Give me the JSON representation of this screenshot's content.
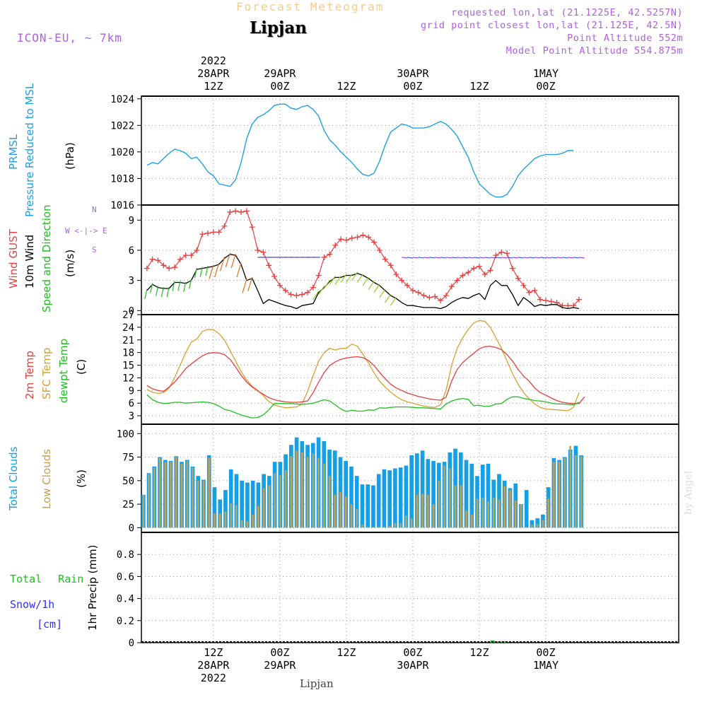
{
  "header": {
    "title_top": "Forecast Meteogram",
    "location": "Lipjan",
    "model": "ICON-EU, ~ 7km",
    "requested": "requested lon,lat (21.1225E, 42.5257N)",
    "grid_point": "grid point closest lon,lat (21.125E, 42.5N)",
    "point_altitude": "Point Altitude 552m",
    "model_altitude": "Model Point Altitude 554.875m",
    "watermark": "by Angel",
    "footer_location": "Lipjan"
  },
  "time_axis": {
    "hours_total": 96,
    "top_labels": [
      {
        "hour": 12,
        "lines": [
          "2022",
          "28APR",
          "12Z"
        ]
      },
      {
        "hour": 24,
        "lines": [
          "29APR",
          "00Z"
        ]
      },
      {
        "hour": 36,
        "lines": [
          "12Z"
        ]
      },
      {
        "hour": 48,
        "lines": [
          "30APR",
          "00Z"
        ]
      },
      {
        "hour": 60,
        "lines": [
          "12Z"
        ]
      },
      {
        "hour": 72,
        "lines": [
          "1MAY",
          "00Z"
        ]
      }
    ],
    "bottom_labels": [
      {
        "hour": 12,
        "lines": [
          "12Z",
          "28APR",
          "2022"
        ]
      },
      {
        "hour": 24,
        "lines": [
          "00Z",
          "29APR"
        ]
      },
      {
        "hour": 36,
        "lines": [
          "12Z"
        ]
      },
      {
        "hour": 48,
        "lines": [
          "00Z",
          "30APR"
        ]
      },
      {
        "hour": 60,
        "lines": [
          "12Z"
        ]
      },
      {
        "hour": 72,
        "lines": [
          "00Z",
          "1MAY"
        ]
      }
    ],
    "grid_hours": [
      12,
      24,
      36,
      48,
      60,
      72
    ]
  },
  "labels": {
    "pressure": [
      "PRMSL",
      "Pressure Reduced to MSL",
      "(hPa)"
    ],
    "wind": [
      "Wind GUST",
      "10m Wind",
      "Speed and Direction",
      "(m/s)"
    ],
    "compass": [
      "N",
      "W <-|-> E",
      "S"
    ],
    "temp": [
      "2m Temp",
      "SFC Temp",
      "dewpt Temp",
      "(C)"
    ],
    "clouds": [
      "Total Clouds",
      "Low Clouds",
      "(%)"
    ],
    "precip": [
      "Total Rain",
      "Snow/1h",
      "[cm]",
      "1hr Precip (mm)"
    ]
  },
  "colors": {
    "pressure": "#1ea0e6",
    "gust": "#e64040",
    "wind": "#000000",
    "temp2m": "#e64040",
    "sfc": "#d8a030",
    "dewpt": "#20c020",
    "total_clouds": "#14a0e6",
    "low_clouds": "#c8a050",
    "rain": "#20c020",
    "snow": "#3030ff",
    "purple": "#b060e0"
  },
  "chart_data": [
    {
      "type": "line",
      "name": "pressure",
      "x_step_hours": 1,
      "ylim": [
        1016,
        1024.2
      ],
      "yticks": [
        1016,
        1018,
        1020,
        1022,
        1024
      ],
      "series": [
        {
          "name": "PRMSL",
          "values": [
            1019,
            1019.2,
            1019.1,
            1019.5,
            1019.9,
            1020.2,
            1020.1,
            1019.9,
            1019.5,
            1019.6,
            1019.1,
            1018.5,
            1018.2,
            1017.6,
            1017.5,
            1017.4,
            1017.9,
            1019.2,
            1021,
            1022.1,
            1022.6,
            1022.8,
            1023.1,
            1023.5,
            1023.6,
            1023.6,
            1023.3,
            1023.2,
            1023.4,
            1023.5,
            1023.2,
            1022.7,
            1021.6,
            1020.9,
            1020.5,
            1020,
            1019.6,
            1019.2,
            1018.7,
            1018.3,
            1018.2,
            1018.4,
            1019.3,
            1020.5,
            1021.5,
            1021.8,
            1022.1,
            1022,
            1021.8,
            1021.8,
            1021.8,
            1021.9,
            1022.1,
            1022.3,
            1022.1,
            1021.7,
            1021.2,
            1020.4,
            1019.6,
            1018.5,
            1017.6,
            1017.2,
            1016.8,
            1016.6,
            1016.6,
            1016.8,
            1017.4,
            1018.2,
            1018.7,
            1019.1,
            1019.5,
            1019.7,
            1019.8,
            1019.8,
            1019.8,
            1019.9,
            1020.1,
            1020.1
          ]
        }
      ]
    },
    {
      "type": "line",
      "name": "wind",
      "ylim": [
        -0.4,
        10.5
      ],
      "yticks": [
        0,
        3,
        6,
        9
      ],
      "series": [
        {
          "name": "Wind GUST",
          "values": [
            4.2,
            5.1,
            5.0,
            4.5,
            4.2,
            4.3,
            5.1,
            5.5,
            5.5,
            6.0,
            7.6,
            7.7,
            7.8,
            7.8,
            8.4,
            9.8,
            9.9,
            9.8,
            9.9,
            8.3,
            6.0,
            5.8,
            4.5,
            3.4,
            2.5,
            2.0,
            1.6,
            1.5,
            1.6,
            1.8,
            2.3,
            3.5,
            5.3,
            5.6,
            6.5,
            7.1,
            7.0,
            7.2,
            7.3,
            7.5,
            7.3,
            6.8,
            6.0,
            5.1,
            4.5,
            3.6,
            3.0,
            2.5,
            2.0,
            1.8,
            1.5,
            1.3,
            1.4,
            1.0,
            1.5,
            2.4,
            3.0,
            3.5,
            3.8,
            4.2,
            4.4,
            3.6,
            4.0,
            5.5,
            5.8,
            5.7,
            4.2,
            3.2,
            2.5,
            1.8,
            2.0,
            1.1,
            1.0,
            0.9,
            0.8,
            0.5,
            0.5,
            0.5,
            1.1
          ]
        },
        {
          "name": "10m Wind",
          "values": [
            2.0,
            2.6,
            2.3,
            2.2,
            2.2,
            2.8,
            2.8,
            2.7,
            3.0,
            4.1,
            4.2,
            4.3,
            4.4,
            4.6,
            5.2,
            5.6,
            5.5,
            4.6,
            3.0,
            3.2,
            2.0,
            0.7,
            1.1,
            0.9,
            0.7,
            0.5,
            0.4,
            0.2,
            0.5,
            0.6,
            0.7,
            1.8,
            2.3,
            2.9,
            3.3,
            3.3,
            3.5,
            3.5,
            3.7,
            3.5,
            3.2,
            2.8,
            2.5,
            2.0,
            1.5,
            1.2,
            0.8,
            0.5,
            0.5,
            0.4,
            0.3,
            0.3,
            0.3,
            0.2,
            0.4,
            0.8,
            1.1,
            1.3,
            1.2,
            1.5,
            1.7,
            1.1,
            2.5,
            3.0,
            2.5,
            2.5,
            1.6,
            0.5,
            1.3,
            0.9,
            0.4,
            0.6,
            0.5,
            0.6,
            0.6,
            0.3,
            0.2,
            0.3,
            0.2
          ]
        }
      ]
    },
    {
      "type": "line",
      "name": "temperature",
      "ylim": [
        1,
        27
      ],
      "yticks": [
        3,
        6,
        9,
        12,
        15,
        18,
        21,
        24,
        27
      ],
      "series": [
        {
          "name": "2m Temp",
          "values": [
            10.2,
            9.4,
            9.0,
            8.8,
            9.8,
            11,
            12.5,
            14.2,
            15.3,
            16.3,
            17.2,
            17.8,
            18,
            17.9,
            17.5,
            16.4,
            14.6,
            12.6,
            11,
            9.8,
            8.9,
            8.1,
            7.3,
            6.8,
            6.5,
            6.3,
            6.2,
            6.2,
            6.3,
            6.5,
            8.5,
            11,
            13.3,
            14.9,
            15.8,
            16.4,
            16.7,
            16.9,
            17,
            16.8,
            16.1,
            14.9,
            13.3,
            11.8,
            10.5,
            9.6,
            9.0,
            8.4,
            8.0,
            7.6,
            7.3,
            7.0,
            6.8,
            6.7,
            7.4,
            11.2,
            14.0,
            15.6,
            16.8,
            17.8,
            18.9,
            19.4,
            19.5,
            19.2,
            18.7,
            17.5,
            16.0,
            14.0,
            12.4,
            11.2,
            9.6,
            8.5,
            7.9,
            7.2,
            6.6,
            6.2,
            6.0,
            5.9,
            5.9,
            7.5
          ]
        },
        {
          "name": "SFC Temp",
          "values": [
            9.2,
            8.6,
            8.3,
            8.5,
            9.6,
            12.0,
            15.0,
            18.0,
            20.5,
            21.2,
            23.0,
            23.5,
            23.4,
            22.5,
            21.0,
            18.5,
            16.0,
            13.5,
            11.5,
            10.0,
            9.0,
            7.8,
            6.4,
            5.6,
            5.2,
            4.9,
            5.0,
            5.1,
            5.8,
            8.8,
            12.5,
            16.0,
            18.0,
            19.0,
            18.6,
            19.0,
            19.0,
            20.0,
            19.5,
            17.6,
            15.5,
            13.2,
            11.2,
            9.8,
            8.6,
            7.6,
            6.8,
            6.3,
            6.0,
            5.6,
            5.3,
            5.1,
            5.0,
            5.6,
            9.0,
            15.0,
            19.0,
            21.5,
            23.5,
            25.0,
            25.6,
            25.4,
            24.0,
            21.5,
            19.0,
            16.0,
            13.0,
            10.5,
            8.5,
            7.0,
            5.8,
            5.0,
            4.6,
            4.5,
            4.4,
            4.3,
            4.2,
            5.0,
            8.5
          ]
        },
        {
          "name": "dewpt Temp",
          "values": [
            8.0,
            6.8,
            6.2,
            5.9,
            6.0,
            6.2,
            6.2,
            6.0,
            6.1,
            6.2,
            6.3,
            6.2,
            5.9,
            5.3,
            4.5,
            4.2,
            3.7,
            3.2,
            2.8,
            2.5,
            2.6,
            3.2,
            4.4,
            5.9,
            5.9,
            5.9,
            5.9,
            5.8,
            5.7,
            5.8,
            6.0,
            6.4,
            6.8,
            6.5,
            5.6,
            4.6,
            4.0,
            4.3,
            4.1,
            4.1,
            4.4,
            4.3,
            4.9,
            4.8,
            5.0,
            5.1,
            5.1,
            5.1,
            5.0,
            4.9,
            4.9,
            4.8,
            4.7,
            4.6,
            5.8,
            6.5,
            6.9,
            7.1,
            6.9,
            5.4,
            5.5,
            5.2,
            5.3,
            5.8,
            5.9,
            6.9,
            7.5,
            7.5,
            7.1,
            6.9,
            6.6,
            6.5,
            6.3,
            6.0,
            5.8,
            5.8,
            5.7,
            5.6,
            6.2
          ]
        }
      ]
    },
    {
      "type": "bar",
      "name": "clouds",
      "ylim": [
        -5,
        110
      ],
      "yticks": [
        0,
        25,
        50,
        75,
        100
      ],
      "series": [
        {
          "name": "Total Clouds",
          "values": [
            35,
            58,
            65,
            75,
            72,
            71,
            76,
            70,
            72,
            65,
            55,
            51,
            77,
            43,
            30,
            40,
            62,
            57,
            50,
            48,
            50,
            48,
            57,
            55,
            70,
            70,
            78,
            88,
            96,
            92,
            88,
            90,
            96,
            92,
            83,
            82,
            75,
            71,
            65,
            55,
            46,
            46,
            45,
            57,
            62,
            61,
            63,
            64,
            66,
            77,
            79,
            82,
            73,
            71,
            69,
            70,
            80,
            84,
            80,
            72,
            68,
            55,
            67,
            68,
            51,
            57,
            50,
            42,
            47,
            25,
            40,
            8,
            10,
            14,
            43,
            74,
            72,
            75,
            83,
            87,
            77
          ]
        },
        {
          "name": "Low Clouds",
          "values": [
            35,
            57,
            64,
            74,
            70,
            70,
            75,
            68,
            71,
            64,
            50,
            50,
            74,
            15,
            15,
            17,
            26,
            24,
            8,
            7,
            14,
            23,
            42,
            45,
            58,
            56,
            61,
            76,
            82,
            80,
            75,
            79,
            74,
            68,
            55,
            35,
            38,
            33,
            25,
            20,
            3,
            1,
            1,
            1,
            1,
            2,
            5,
            5,
            13,
            10,
            35,
            36,
            35,
            25,
            50,
            66,
            63,
            45,
            45,
            18,
            14,
            31,
            32,
            28,
            32,
            30,
            44,
            40,
            29,
            25,
            1,
            3,
            4,
            8,
            31,
            70,
            70,
            74,
            87,
            77,
            76
          ]
        }
      ]
    },
    {
      "type": "bar",
      "name": "precipitation",
      "ylim": [
        0,
        1.0
      ],
      "yticks": [
        0,
        0.2,
        0.4,
        0.6,
        0.8
      ],
      "series": [
        {
          "name": "Total Rain",
          "points": [
            {
              "hour": 62,
              "value": 0.02
            },
            {
              "hour": 63,
              "value": 0.01
            },
            {
              "hour": 64,
              "value": 0.01
            }
          ]
        },
        {
          "name": "Snow/1h",
          "points": []
        }
      ]
    }
  ]
}
